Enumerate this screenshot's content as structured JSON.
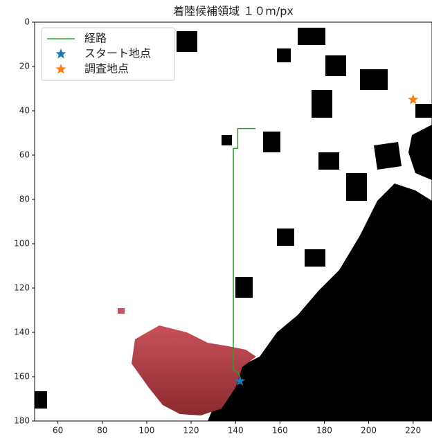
{
  "chart_data": {
    "type": "line",
    "title": "着陸候補領域 １０m/px",
    "xlim": [
      49.5,
      228.5
    ],
    "xticks": [
      60,
      80,
      100,
      120,
      140,
      160,
      180,
      200,
      220
    ],
    "ylim": [
      180,
      0
    ],
    "yticks": [
      0,
      20,
      40,
      60,
      80,
      100,
      120,
      140,
      160,
      180
    ],
    "legend": "upper left",
    "series": [
      {
        "name": "経路",
        "type": "line",
        "color": "#2ca02c",
        "x": [
          149,
          141,
          141,
          139,
          139,
          141,
          142,
          142
        ],
        "values": [
          48,
          48,
          57,
          57,
          157,
          158,
          160,
          162
        ]
      },
      {
        "name": "スタート地点",
        "type": "scatter",
        "color": "#1f77b4",
        "x": [
          142
        ],
        "values": [
          162
        ]
      },
      {
        "name": "調査地点",
        "type": "scatter",
        "color": "#ff7f0e",
        "x": [
          220
        ],
        "values": [
          35
        ]
      }
    ]
  }
}
